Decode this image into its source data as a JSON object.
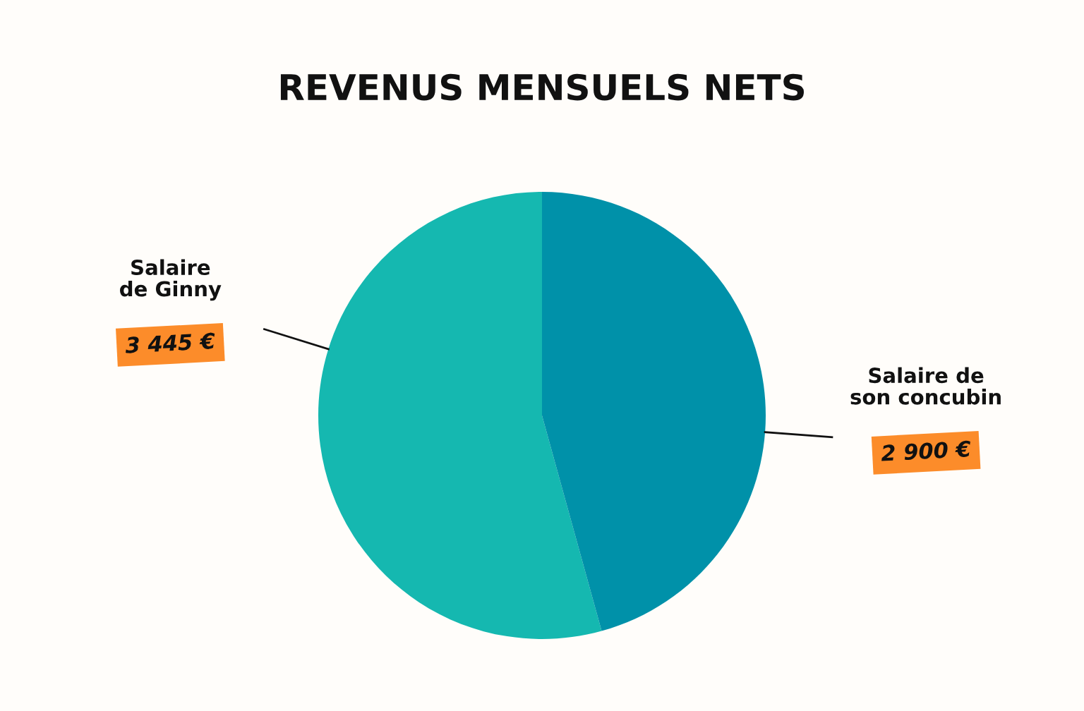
{
  "chart_data": {
    "type": "pie",
    "title": "REVENUS MENSUELS NETS",
    "categories": [
      "Salaire\nde Ginny",
      "Salaire de\nson concubin"
    ],
    "values": [
      3445,
      2900
    ],
    "value_labels": [
      "3 445 €",
      "2 900 €"
    ],
    "colors": [
      "#15b8b0",
      "#0091a9"
    ],
    "legend": false
  }
}
